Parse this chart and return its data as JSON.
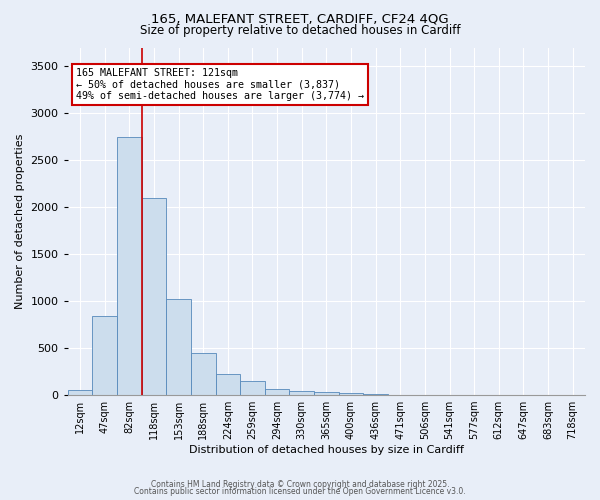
{
  "title_line1": "165, MALEFANT STREET, CARDIFF, CF24 4QG",
  "title_line2": "Size of property relative to detached houses in Cardiff",
  "xlabel": "Distribution of detached houses by size in Cardiff",
  "ylabel": "Number of detached properties",
  "bar_labels": [
    "12sqm",
    "47sqm",
    "82sqm",
    "118sqm",
    "153sqm",
    "188sqm",
    "224sqm",
    "259sqm",
    "294sqm",
    "330sqm",
    "365sqm",
    "400sqm",
    "436sqm",
    "471sqm",
    "506sqm",
    "541sqm",
    "577sqm",
    "612sqm",
    "647sqm",
    "683sqm",
    "718sqm"
  ],
  "bar_values": [
    50,
    840,
    2750,
    2100,
    1020,
    450,
    220,
    145,
    70,
    45,
    35,
    25,
    10,
    5,
    2,
    1,
    1,
    0,
    0,
    0,
    0
  ],
  "bar_color": "#ccdded",
  "bar_edge_color": "#5588bb",
  "red_line_x": 3.0,
  "annotation_line1": "165 MALEFANT STREET: 121sqm",
  "annotation_line2": "← 50% of detached houses are smaller (3,837)",
  "annotation_line3": "49% of semi-detached houses are larger (3,774) →",
  "annotation_box_facecolor": "#ffffff",
  "annotation_box_edgecolor": "#cc0000",
  "ylim": [
    0,
    3700
  ],
  "yticks": [
    0,
    500,
    1000,
    1500,
    2000,
    2500,
    3000,
    3500
  ],
  "background_color": "#e8eef8",
  "grid_color": "#ffffff",
  "footer_line1": "Contains HM Land Registry data © Crown copyright and database right 2025.",
  "footer_line2": "Contains public sector information licensed under the Open Government Licence v3.0."
}
